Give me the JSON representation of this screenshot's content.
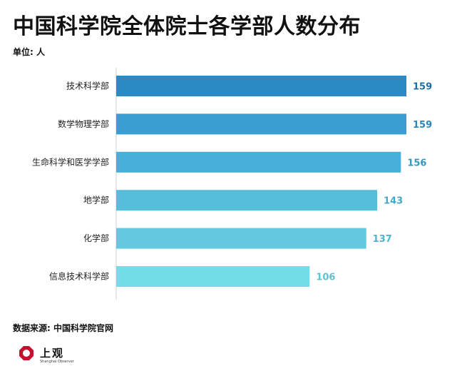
{
  "title": "中国科学院全体院士各学部人数分布",
  "unit_label": "单位: 人",
  "source": "数据来源: 中国科学院官网",
  "logo": {
    "text": "上观",
    "subtext": "Shanghai Observer"
  },
  "chart_data": {
    "type": "bar",
    "orientation": "horizontal",
    "title": "中国科学院全体院士各学部人数分布",
    "categories": [
      "技术科学部",
      "数学物理学部",
      "生命科学和医学学部",
      "地学部",
      "化学部",
      "信息技术科学部"
    ],
    "values": [
      159,
      159,
      156,
      143,
      137,
      106
    ],
    "xlim": [
      0,
      160
    ],
    "grid": false,
    "bar_colors": [
      "#2B8AC6",
      "#3A9ED3",
      "#47AFD8",
      "#58BDDB",
      "#64C8E0",
      "#72DCE8"
    ],
    "value_label_colors": [
      "#1F6FA3",
      "#2C86B6",
      "#3398C0",
      "#44A9C8",
      "#4FB3CF",
      "#5EC2D6"
    ]
  }
}
